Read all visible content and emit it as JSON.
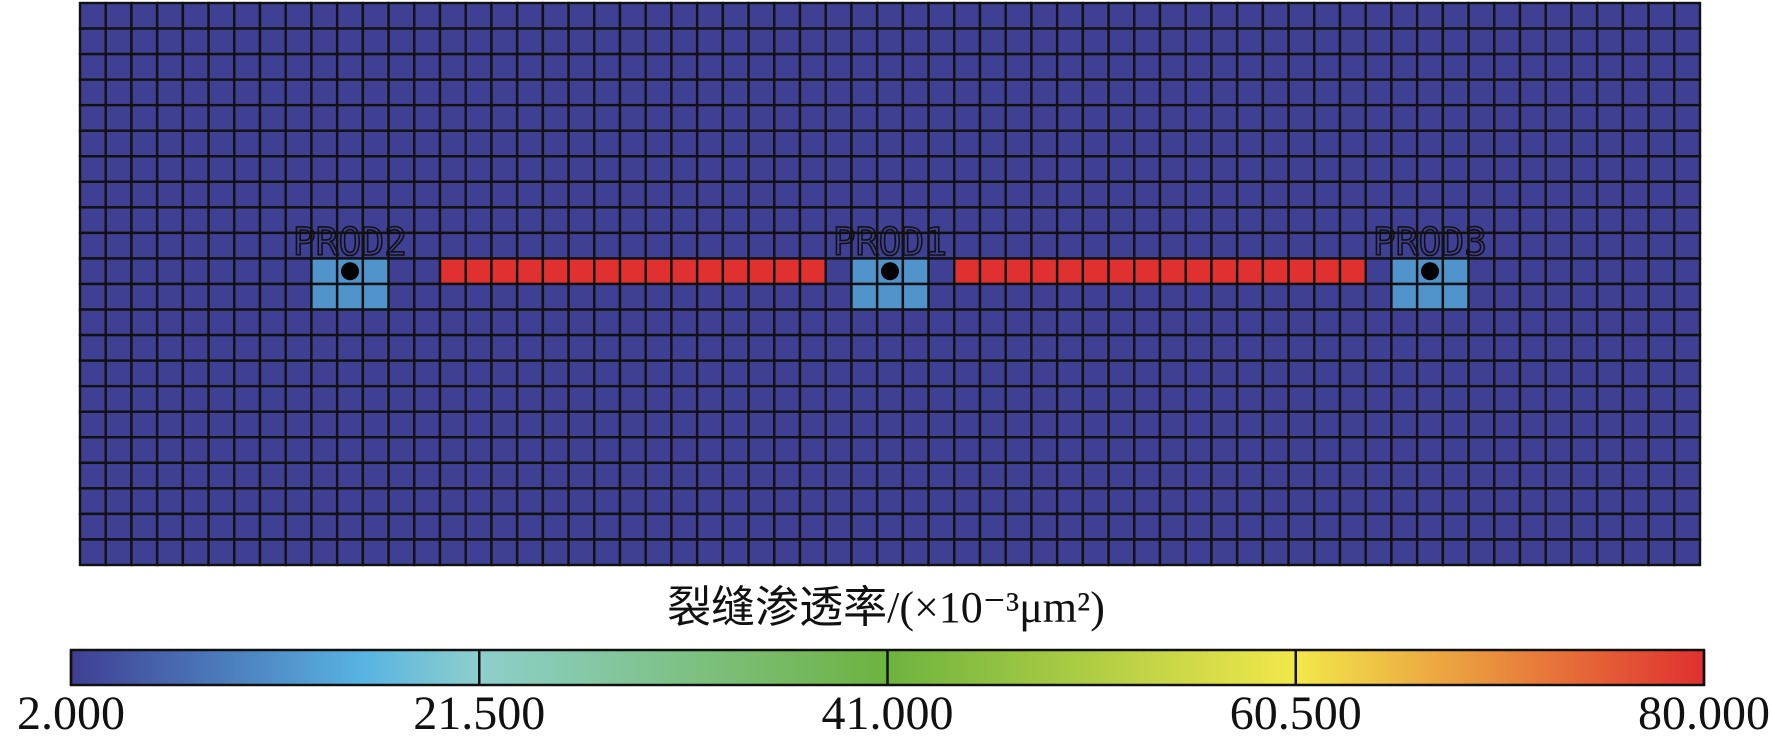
{
  "chart_data": {
    "type": "heatmap",
    "title": "裂缝渗透率/(×10⁻³μm²)",
    "values": [
      [
        2,
        2,
        2,
        2,
        2,
        2,
        2,
        2,
        2,
        2,
        2,
        2,
        2,
        2,
        2,
        2,
        2,
        2,
        2,
        2,
        2,
        2,
        2,
        2,
        2,
        2,
        2,
        2,
        2,
        2,
        2,
        2,
        2,
        2,
        2,
        2,
        2,
        2,
        2,
        2,
        2,
        2,
        2,
        2,
        2,
        2,
        2,
        2,
        2,
        2,
        2,
        2,
        2,
        2,
        2,
        2,
        2,
        2,
        2,
        2,
        2,
        2,
        2
      ],
      [
        2,
        2,
        2,
        2,
        2,
        2,
        2,
        2,
        2,
        2,
        2,
        2,
        2,
        2,
        2,
        2,
        2,
        2,
        2,
        2,
        2,
        2,
        2,
        2,
        2,
        2,
        2,
        2,
        2,
        2,
        2,
        2,
        2,
        2,
        2,
        2,
        2,
        2,
        2,
        2,
        2,
        2,
        2,
        2,
        2,
        2,
        2,
        2,
        2,
        2,
        2,
        2,
        2,
        2,
        2,
        2,
        2,
        2,
        2,
        2,
        2,
        2,
        2
      ],
      [
        2,
        2,
        2,
        2,
        2,
        2,
        2,
        2,
        2,
        2,
        2,
        2,
        2,
        2,
        2,
        2,
        2,
        2,
        2,
        2,
        2,
        2,
        2,
        2,
        2,
        2,
        2,
        2,
        2,
        2,
        2,
        2,
        2,
        2,
        2,
        2,
        2,
        2,
        2,
        2,
        2,
        2,
        2,
        2,
        2,
        2,
        2,
        2,
        2,
        2,
        2,
        2,
        2,
        2,
        2,
        2,
        2,
        2,
        2,
        2,
        2,
        2,
        2
      ],
      [
        2,
        2,
        2,
        2,
        2,
        2,
        2,
        2,
        2,
        2,
        2,
        2,
        2,
        2,
        2,
        2,
        2,
        2,
        2,
        2,
        2,
        2,
        2,
        2,
        2,
        2,
        2,
        2,
        2,
        2,
        2,
        2,
        2,
        2,
        2,
        2,
        2,
        2,
        2,
        2,
        2,
        2,
        2,
        2,
        2,
        2,
        2,
        2,
        2,
        2,
        2,
        2,
        2,
        2,
        2,
        2,
        2,
        2,
        2,
        2,
        2,
        2,
        2
      ],
      [
        2,
        2,
        2,
        2,
        2,
        2,
        2,
        2,
        2,
        2,
        2,
        2,
        2,
        2,
        2,
        2,
        2,
        2,
        2,
        2,
        2,
        2,
        2,
        2,
        2,
        2,
        2,
        2,
        2,
        2,
        2,
        2,
        2,
        2,
        2,
        2,
        2,
        2,
        2,
        2,
        2,
        2,
        2,
        2,
        2,
        2,
        2,
        2,
        2,
        2,
        2,
        2,
        2,
        2,
        2,
        2,
        2,
        2,
        2,
        2,
        2,
        2,
        2
      ],
      [
        2,
        2,
        2,
        2,
        2,
        2,
        2,
        2,
        2,
        2,
        2,
        2,
        2,
        2,
        2,
        2,
        2,
        2,
        2,
        2,
        2,
        2,
        2,
        2,
        2,
        2,
        2,
        2,
        2,
        2,
        2,
        2,
        2,
        2,
        2,
        2,
        2,
        2,
        2,
        2,
        2,
        2,
        2,
        2,
        2,
        2,
        2,
        2,
        2,
        2,
        2,
        2,
        2,
        2,
        2,
        2,
        2,
        2,
        2,
        2,
        2,
        2,
        2
      ],
      [
        2,
        2,
        2,
        2,
        2,
        2,
        2,
        2,
        2,
        2,
        2,
        2,
        2,
        2,
        2,
        2,
        2,
        2,
        2,
        2,
        2,
        2,
        2,
        2,
        2,
        2,
        2,
        2,
        2,
        2,
        2,
        2,
        2,
        2,
        2,
        2,
        2,
        2,
        2,
        2,
        2,
        2,
        2,
        2,
        2,
        2,
        2,
        2,
        2,
        2,
        2,
        2,
        2,
        2,
        2,
        2,
        2,
        2,
        2,
        2,
        2,
        2,
        2
      ],
      [
        2,
        2,
        2,
        2,
        2,
        2,
        2,
        2,
        2,
        2,
        2,
        2,
        2,
        2,
        2,
        2,
        2,
        2,
        2,
        2,
        2,
        2,
        2,
        2,
        2,
        2,
        2,
        2,
        2,
        2,
        2,
        2,
        2,
        2,
        2,
        2,
        2,
        2,
        2,
        2,
        2,
        2,
        2,
        2,
        2,
        2,
        2,
        2,
        2,
        2,
        2,
        2,
        2,
        2,
        2,
        2,
        2,
        2,
        2,
        2,
        2,
        2,
        2
      ],
      [
        2,
        2,
        2,
        2,
        2,
        2,
        2,
        2,
        2,
        2,
        2,
        2,
        2,
        2,
        2,
        2,
        2,
        2,
        2,
        2,
        2,
        2,
        2,
        2,
        2,
        2,
        2,
        2,
        2,
        2,
        2,
        2,
        2,
        2,
        2,
        2,
        2,
        2,
        2,
        2,
        2,
        2,
        2,
        2,
        2,
        2,
        2,
        2,
        2,
        2,
        2,
        2,
        2,
        2,
        2,
        2,
        2,
        2,
        2,
        2,
        2,
        2,
        2
      ],
      [
        2,
        2,
        2,
        2,
        2,
        2,
        2,
        2,
        2,
        2,
        2,
        2,
        2,
        2,
        2,
        2,
        2,
        2,
        2,
        2,
        2,
        2,
        2,
        2,
        2,
        2,
        2,
        2,
        2,
        2,
        2,
        2,
        2,
        2,
        2,
        2,
        2,
        2,
        2,
        2,
        2,
        2,
        2,
        2,
        2,
        2,
        2,
        2,
        2,
        2,
        2,
        2,
        2,
        2,
        2,
        2,
        2,
        2,
        2,
        2,
        2,
        2,
        2
      ],
      [
        2,
        2,
        2,
        2,
        2,
        2,
        2,
        2,
        2,
        12,
        12,
        12,
        2,
        2,
        80,
        80,
        80,
        80,
        80,
        80,
        80,
        80,
        80,
        80,
        80,
        80,
        80,
        80,
        80,
        2,
        12,
        12,
        12,
        2,
        80,
        80,
        80,
        80,
        80,
        80,
        80,
        80,
        80,
        80,
        80,
        80,
        80,
        80,
        80,
        80,
        2,
        12,
        12,
        12,
        2,
        2,
        2,
        2,
        2,
        2,
        2,
        2,
        2
      ],
      [
        2,
        2,
        2,
        2,
        2,
        2,
        2,
        2,
        2,
        12,
        12,
        12,
        2,
        2,
        2,
        2,
        2,
        2,
        2,
        2,
        2,
        2,
        2,
        2,
        2,
        2,
        2,
        2,
        2,
        2,
        12,
        12,
        12,
        2,
        2,
        2,
        2,
        2,
        2,
        2,
        2,
        2,
        2,
        2,
        2,
        2,
        2,
        2,
        2,
        2,
        2,
        12,
        12,
        12,
        2,
        2,
        2,
        2,
        2,
        2,
        2,
        2,
        2
      ],
      [
        2,
        2,
        2,
        2,
        2,
        2,
        2,
        2,
        2,
        2,
        2,
        2,
        2,
        2,
        2,
        2,
        2,
        2,
        2,
        2,
        2,
        2,
        2,
        2,
        2,
        2,
        2,
        2,
        2,
        2,
        2,
        2,
        2,
        2,
        2,
        2,
        2,
        2,
        2,
        2,
        2,
        2,
        2,
        2,
        2,
        2,
        2,
        2,
        2,
        2,
        2,
        2,
        2,
        2,
        2,
        2,
        2,
        2,
        2,
        2,
        2,
        2,
        2
      ],
      [
        2,
        2,
        2,
        2,
        2,
        2,
        2,
        2,
        2,
        2,
        2,
        2,
        2,
        2,
        2,
        2,
        2,
        2,
        2,
        2,
        2,
        2,
        2,
        2,
        2,
        2,
        2,
        2,
        2,
        2,
        2,
        2,
        2,
        2,
        2,
        2,
        2,
        2,
        2,
        2,
        2,
        2,
        2,
        2,
        2,
        2,
        2,
        2,
        2,
        2,
        2,
        2,
        2,
        2,
        2,
        2,
        2,
        2,
        2,
        2,
        2,
        2,
        2
      ],
      [
        2,
        2,
        2,
        2,
        2,
        2,
        2,
        2,
        2,
        2,
        2,
        2,
        2,
        2,
        2,
        2,
        2,
        2,
        2,
        2,
        2,
        2,
        2,
        2,
        2,
        2,
        2,
        2,
        2,
        2,
        2,
        2,
        2,
        2,
        2,
        2,
        2,
        2,
        2,
        2,
        2,
        2,
        2,
        2,
        2,
        2,
        2,
        2,
        2,
        2,
        2,
        2,
        2,
        2,
        2,
        2,
        2,
        2,
        2,
        2,
        2,
        2,
        2
      ],
      [
        2,
        2,
        2,
        2,
        2,
        2,
        2,
        2,
        2,
        2,
        2,
        2,
        2,
        2,
        2,
        2,
        2,
        2,
        2,
        2,
        2,
        2,
        2,
        2,
        2,
        2,
        2,
        2,
        2,
        2,
        2,
        2,
        2,
        2,
        2,
        2,
        2,
        2,
        2,
        2,
        2,
        2,
        2,
        2,
        2,
        2,
        2,
        2,
        2,
        2,
        2,
        2,
        2,
        2,
        2,
        2,
        2,
        2,
        2,
        2,
        2,
        2,
        2
      ],
      [
        2,
        2,
        2,
        2,
        2,
        2,
        2,
        2,
        2,
        2,
        2,
        2,
        2,
        2,
        2,
        2,
        2,
        2,
        2,
        2,
        2,
        2,
        2,
        2,
        2,
        2,
        2,
        2,
        2,
        2,
        2,
        2,
        2,
        2,
        2,
        2,
        2,
        2,
        2,
        2,
        2,
        2,
        2,
        2,
        2,
        2,
        2,
        2,
        2,
        2,
        2,
        2,
        2,
        2,
        2,
        2,
        2,
        2,
        2,
        2,
        2,
        2,
        2
      ],
      [
        2,
        2,
        2,
        2,
        2,
        2,
        2,
        2,
        2,
        2,
        2,
        2,
        2,
        2,
        2,
        2,
        2,
        2,
        2,
        2,
        2,
        2,
        2,
        2,
        2,
        2,
        2,
        2,
        2,
        2,
        2,
        2,
        2,
        2,
        2,
        2,
        2,
        2,
        2,
        2,
        2,
        2,
        2,
        2,
        2,
        2,
        2,
        2,
        2,
        2,
        2,
        2,
        2,
        2,
        2,
        2,
        2,
        2,
        2,
        2,
        2,
        2,
        2
      ],
      [
        2,
        2,
        2,
        2,
        2,
        2,
        2,
        2,
        2,
        2,
        2,
        2,
        2,
        2,
        2,
        2,
        2,
        2,
        2,
        2,
        2,
        2,
        2,
        2,
        2,
        2,
        2,
        2,
        2,
        2,
        2,
        2,
        2,
        2,
        2,
        2,
        2,
        2,
        2,
        2,
        2,
        2,
        2,
        2,
        2,
        2,
        2,
        2,
        2,
        2,
        2,
        2,
        2,
        2,
        2,
        2,
        2,
        2,
        2,
        2,
        2,
        2,
        2
      ],
      [
        2,
        2,
        2,
        2,
        2,
        2,
        2,
        2,
        2,
        2,
        2,
        2,
        2,
        2,
        2,
        2,
        2,
        2,
        2,
        2,
        2,
        2,
        2,
        2,
        2,
        2,
        2,
        2,
        2,
        2,
        2,
        2,
        2,
        2,
        2,
        2,
        2,
        2,
        2,
        2,
        2,
        2,
        2,
        2,
        2,
        2,
        2,
        2,
        2,
        2,
        2,
        2,
        2,
        2,
        2,
        2,
        2,
        2,
        2,
        2,
        2,
        2,
        2
      ],
      [
        2,
        2,
        2,
        2,
        2,
        2,
        2,
        2,
        2,
        2,
        2,
        2,
        2,
        2,
        2,
        2,
        2,
        2,
        2,
        2,
        2,
        2,
        2,
        2,
        2,
        2,
        2,
        2,
        2,
        2,
        2,
        2,
        2,
        2,
        2,
        2,
        2,
        2,
        2,
        2,
        2,
        2,
        2,
        2,
        2,
        2,
        2,
        2,
        2,
        2,
        2,
        2,
        2,
        2,
        2,
        2,
        2,
        2,
        2,
        2,
        2,
        2,
        2
      ],
      [
        2,
        2,
        2,
        2,
        2,
        2,
        2,
        2,
        2,
        2,
        2,
        2,
        2,
        2,
        2,
        2,
        2,
        2,
        2,
        2,
        2,
        2,
        2,
        2,
        2,
        2,
        2,
        2,
        2,
        2,
        2,
        2,
        2,
        2,
        2,
        2,
        2,
        2,
        2,
        2,
        2,
        2,
        2,
        2,
        2,
        2,
        2,
        2,
        2,
        2,
        2,
        2,
        2,
        2,
        2,
        2,
        2,
        2,
        2,
        2,
        2,
        2,
        2
      ]
    ],
    "wells": [
      {
        "label": "PROD2",
        "row": 10,
        "col": 10
      },
      {
        "label": "PROD1",
        "row": 10,
        "col": 31
      },
      {
        "label": "PROD3",
        "row": 10,
        "col": 52
      }
    ],
    "colorscale": [
      [
        2,
        "#3f3f93"
      ],
      [
        16,
        "#58b4e2"
      ],
      [
        21.5,
        "#8ecfcc"
      ],
      [
        41,
        "#6db33f"
      ],
      [
        60.5,
        "#f2e84a"
      ],
      [
        80,
        "#e03030"
      ]
    ],
    "clim": [
      2,
      80
    ],
    "cticks": [
      {
        "value": 2,
        "label": "2.000"
      },
      {
        "value": 21.5,
        "label": "21.500"
      },
      {
        "value": 41,
        "label": "41.000"
      },
      {
        "value": 60.5,
        "label": "60.500"
      },
      {
        "value": 80,
        "label": "80.000"
      }
    ]
  }
}
